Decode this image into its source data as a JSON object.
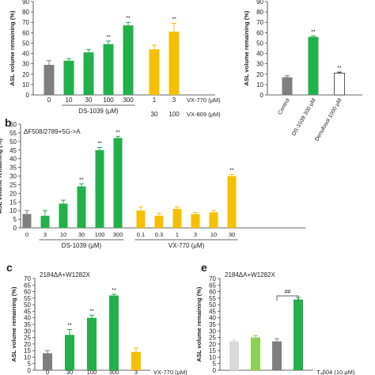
{
  "colors": {
    "grey": "#7f7f7f",
    "green": "#22b04b",
    "yellow": "#f5c000",
    "light_grey": "#d9d9d9",
    "light_green": "#8fd14f",
    "white": "#ffffff",
    "axis": "#333333"
  },
  "chart_data": [
    {
      "id": "a-left",
      "type": "bar",
      "ylabel": "ASL volume remaining (%)",
      "ylim": [
        0,
        90
      ],
      "yticks": [
        0,
        10,
        20,
        30,
        40,
        50,
        60,
        70,
        80,
        90
      ],
      "categories": [
        "0",
        "10",
        "30",
        "100",
        "300",
        "1",
        "3"
      ],
      "values": [
        29,
        33,
        41,
        49,
        67,
        44,
        61
      ],
      "errors": [
        4,
        2,
        3,
        3,
        3,
        4,
        8
      ],
      "colors": [
        "grey",
        "green",
        "green",
        "green",
        "green",
        "yellow",
        "yellow"
      ],
      "significance": [
        "",
        "",
        "",
        "**",
        "**",
        "",
        "**"
      ],
      "group_labels": [
        {
          "text": "DS-1039 (μM)",
          "from": 1,
          "to": 4
        },
        {
          "text": "VX-770 (μM)",
          "after": 6
        }
      ],
      "extra_tick_row": [
        {
          "text": "30",
          "under": 5
        },
        {
          "text": "100",
          "under": 6
        },
        {
          "text": "VX-809 (μM)",
          "after": 6
        }
      ]
    },
    {
      "id": "a-right",
      "type": "bar",
      "ylabel": "ASL volume remaining (%)",
      "ylim": [
        0,
        90
      ],
      "yticks": [
        0,
        10,
        20,
        30,
        40,
        50,
        60,
        70,
        80,
        90
      ],
      "categories": [
        "Control",
        "DS-1039 300 μM",
        "Denufosol 1000 μM"
      ],
      "values": [
        17,
        56,
        21
      ],
      "errors": [
        1.5,
        1,
        1
      ],
      "colors": [
        "grey",
        "green",
        "white"
      ],
      "significance": [
        "",
        "**",
        "**"
      ]
    },
    {
      "id": "b",
      "panel_label": "b",
      "type": "bar",
      "title": "ΔF508/2789+5G->A",
      "ylabel": "ASL volume remaining (%)",
      "ylim": [
        0,
        60
      ],
      "yticks": [
        0,
        5,
        10,
        15,
        20,
        25,
        30,
        35,
        40,
        45,
        50,
        55,
        60
      ],
      "categories": [
        "0",
        "3",
        "10",
        "30",
        "100",
        "300",
        "0.1",
        "0.3",
        "1",
        "3",
        "10",
        "30"
      ],
      "values": [
        8,
        7,
        14,
        24,
        45,
        52,
        10,
        7,
        11,
        8,
        9,
        30
      ],
      "errors": [
        2,
        3,
        2,
        1.5,
        1.5,
        1,
        2,
        1.5,
        1,
        1,
        1,
        1
      ],
      "colors": [
        "grey",
        "green",
        "green",
        "green",
        "green",
        "green",
        "yellow",
        "yellow",
        "yellow",
        "yellow",
        "yellow",
        "yellow"
      ],
      "significance": [
        "",
        "",
        "",
        "**",
        "**",
        "**",
        "",
        "",
        "",
        "",
        "",
        "**"
      ],
      "group_labels": [
        {
          "text": "DS-1039 (μM)",
          "from": 1,
          "to": 5
        },
        {
          "text": "VX-770 (μM)",
          "from": 6,
          "to": 11
        }
      ]
    },
    {
      "id": "c",
      "panel_label": "c",
      "type": "bar",
      "title": "2184ΔA+W1282X",
      "ylabel": "ASL volume remaining (%)",
      "ylim": [
        0,
        70
      ],
      "yticks": [
        0,
        5,
        10,
        15,
        20,
        25,
        30,
        35,
        40,
        45,
        50,
        55,
        60,
        65,
        70
      ],
      "categories": [
        "0",
        "30",
        "100",
        "300",
        "3"
      ],
      "values": [
        13,
        27,
        40,
        57,
        14
      ],
      "errors": [
        2,
        4,
        2,
        1,
        3
      ],
      "colors": [
        "grey",
        "green",
        "green",
        "green",
        "yellow"
      ],
      "significance": [
        "",
        "**",
        "**",
        "**",
        ""
      ],
      "axis_note": "VX-770 (μM)"
    },
    {
      "id": "e",
      "panel_label": "e",
      "type": "bar",
      "title": "2184ΔA+W1282X",
      "ylabel": "ASL volume remaining (%)",
      "ylim": [
        0,
        70
      ],
      "yticks": [
        0,
        5,
        10,
        15,
        20,
        25,
        30,
        35,
        40,
        45,
        50,
        55,
        60,
        65,
        70
      ],
      "categories": [
        "",
        "",
        "",
        ""
      ],
      "values": [
        22,
        25,
        22,
        54
      ],
      "errors": [
        1,
        1.5,
        2,
        1.5
      ],
      "colors": [
        "light_grey",
        "light_green",
        "grey",
        "green"
      ],
      "significance": [
        "",
        "",
        "",
        ""
      ],
      "bracket": {
        "from": 2,
        "to": 3,
        "label": "##"
      },
      "axis_note": "T₄β04 (10 μM)"
    }
  ]
}
